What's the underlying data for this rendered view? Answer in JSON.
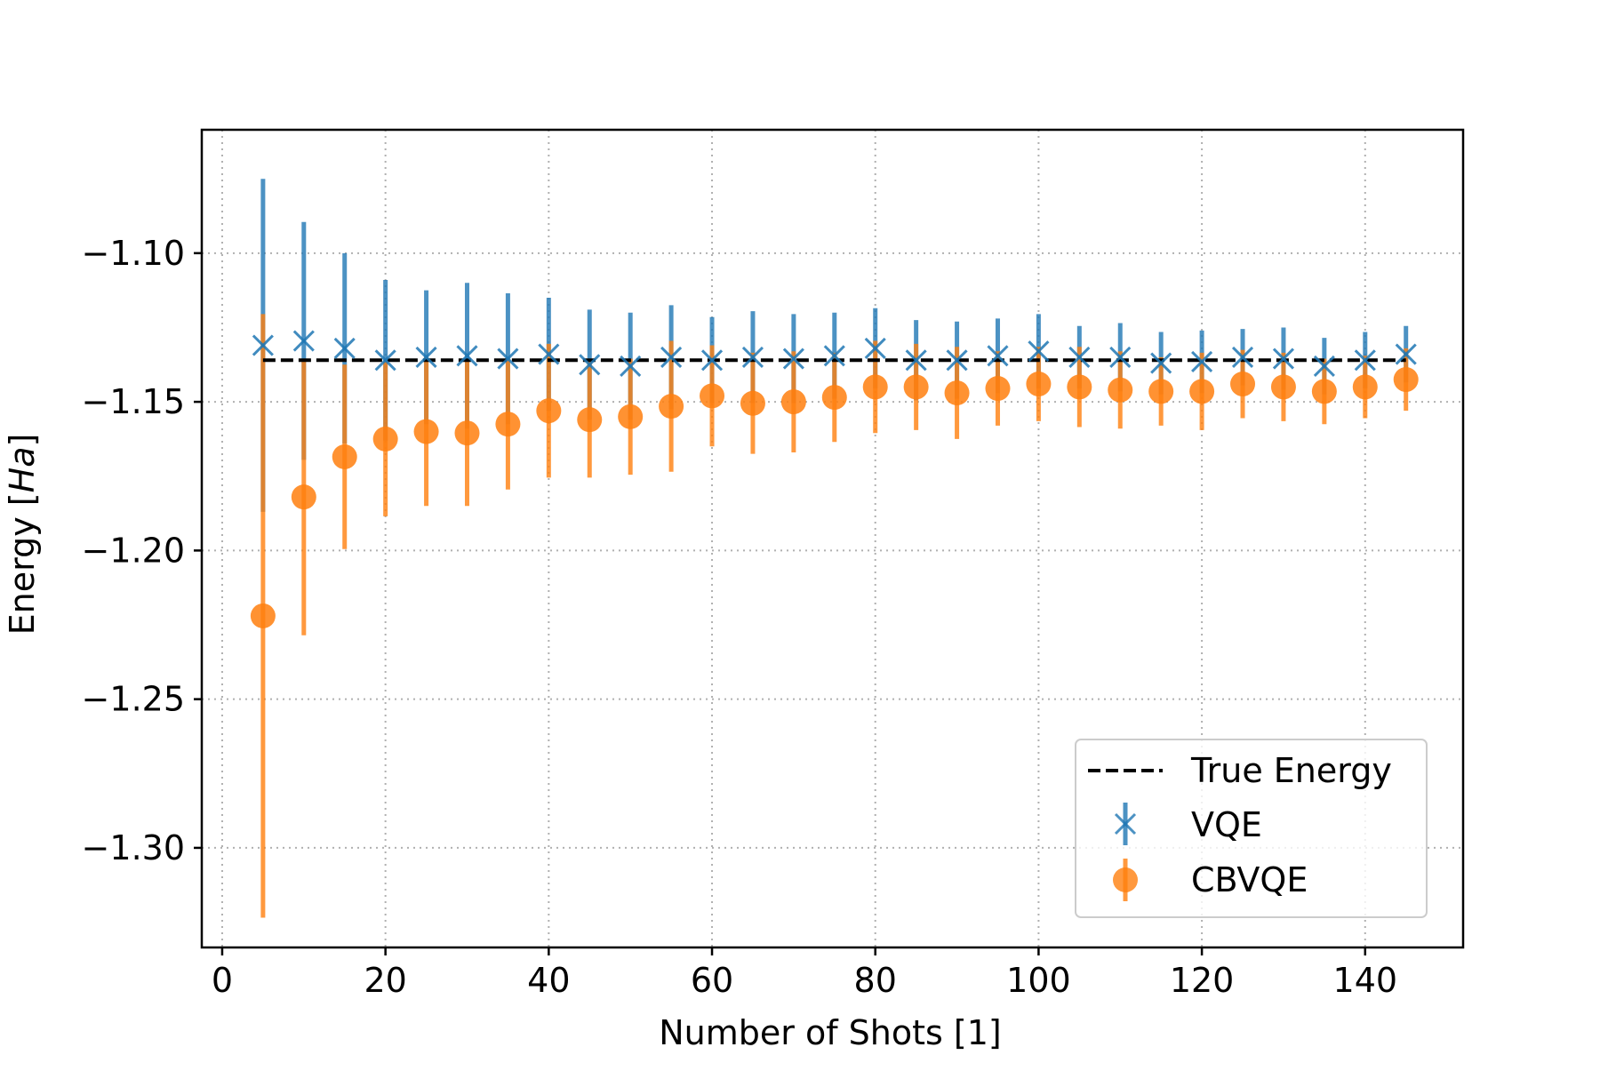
{
  "chart_data": {
    "type": "scatter",
    "title": "",
    "xlabel": "Number of Shots [1]",
    "ylabel_prefix": "Energy [",
    "ylabel_italic": "Ha",
    "ylabel_suffix": "]",
    "xlim": [
      -2.5,
      152
    ],
    "ylim": [
      -1.3335,
      -1.0585
    ],
    "xticks": [
      0,
      20,
      40,
      60,
      80,
      100,
      120,
      140
    ],
    "xtick_labels": [
      "0",
      "20",
      "40",
      "60",
      "80",
      "100",
      "120",
      "140"
    ],
    "yticks": [
      -1.1,
      -1.15,
      -1.2,
      -1.25,
      -1.3
    ],
    "ytick_labels": [
      "−1.10",
      "−1.15",
      "−1.20",
      "−1.25",
      "−1.30"
    ],
    "grid": true,
    "legend_placement": "lower-right",
    "x": [
      5,
      10,
      15,
      20,
      25,
      30,
      35,
      40,
      45,
      50,
      55,
      60,
      65,
      70,
      75,
      80,
      85,
      90,
      95,
      100,
      105,
      110,
      115,
      120,
      125,
      130,
      135,
      140,
      145
    ],
    "true_energy": {
      "name": "True Energy",
      "value": -1.136,
      "x_range": [
        5,
        145
      ],
      "color": "#000000"
    },
    "series": [
      {
        "name": "VQE",
        "marker": "x",
        "color": "#1f77b4",
        "values": [
          -1.131,
          -1.1295,
          -1.132,
          -1.136,
          -1.135,
          -1.1345,
          -1.1355,
          -1.134,
          -1.1375,
          -1.138,
          -1.135,
          -1.136,
          -1.135,
          -1.1355,
          -1.1345,
          -1.132,
          -1.136,
          -1.136,
          -1.1345,
          -1.133,
          -1.135,
          -1.135,
          -1.137,
          -1.1365,
          -1.135,
          -1.1355,
          -1.138,
          -1.136,
          -1.134
        ],
        "errors": [
          0.056,
          0.04,
          0.032,
          0.027,
          0.0225,
          0.0245,
          0.022,
          0.019,
          0.0185,
          0.018,
          0.0175,
          0.0145,
          0.0155,
          0.015,
          0.0145,
          0.0135,
          0.0135,
          0.013,
          0.0125,
          0.0125,
          0.0105,
          0.0115,
          0.0105,
          0.0105,
          0.0095,
          0.0105,
          0.0095,
          0.0095,
          0.0095
        ]
      },
      {
        "name": "CBVQE",
        "marker": "o",
        "color": "#ff7f0e",
        "values": [
          -1.222,
          -1.182,
          -1.1685,
          -1.1625,
          -1.16,
          -1.1605,
          -1.1575,
          -1.153,
          -1.156,
          -1.155,
          -1.1515,
          -1.148,
          -1.1505,
          -1.15,
          -1.1485,
          -1.145,
          -1.145,
          -1.147,
          -1.1455,
          -1.144,
          -1.145,
          -1.146,
          -1.1465,
          -1.1465,
          -1.144,
          -1.145,
          -1.1465,
          -1.145,
          -1.1425
        ],
        "errors": [
          0.1015,
          0.0465,
          0.031,
          0.026,
          0.025,
          0.0245,
          0.022,
          0.0225,
          0.0195,
          0.0195,
          0.022,
          0.017,
          0.017,
          0.017,
          0.015,
          0.0155,
          0.0145,
          0.0155,
          0.0125,
          0.0125,
          0.0135,
          0.013,
          0.0115,
          0.013,
          0.0115,
          0.0115,
          0.011,
          0.0105,
          0.0105
        ]
      }
    ]
  }
}
